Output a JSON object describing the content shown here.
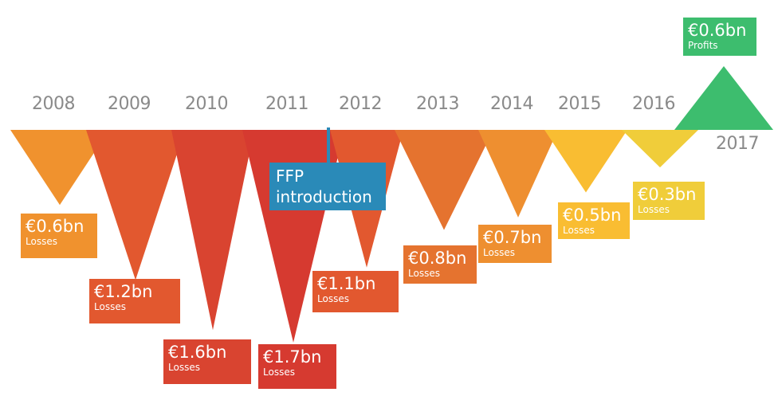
{
  "chart_data": {
    "type": "bar",
    "title": "",
    "categories": [
      "2008",
      "2009",
      "2010",
      "2011",
      "2012",
      "2013",
      "2014",
      "2015",
      "2016",
      "2017"
    ],
    "values": [
      -0.6,
      -1.2,
      -1.6,
      -1.7,
      -1.1,
      -0.8,
      -0.7,
      -0.5,
      -0.3,
      0.6
    ],
    "value_labels": [
      "€0.6bn",
      "€1.2bn",
      "€1.6bn",
      "€1.7bn",
      "€1.1bn",
      "€0.8bn",
      "€0.7bn",
      "€0.5bn",
      "€0.3bn",
      "€0.6bn"
    ],
    "kind_labels": [
      "Losses",
      "Losses",
      "Losses",
      "Losses",
      "Losses",
      "Losses",
      "Losses",
      "Losses",
      "Losses",
      "Profits"
    ],
    "annotation": "FFP introduction",
    "annotation_lines": [
      "FFP",
      "introduction"
    ],
    "colors": [
      "#f0922e",
      "#e2582f",
      "#d94430",
      "#d63a30",
      "#e2582f",
      "#e5732f",
      "#ee8f30",
      "#f9bd32",
      "#f0cd3a",
      "#3dbd6e"
    ],
    "unit": "€bn"
  }
}
